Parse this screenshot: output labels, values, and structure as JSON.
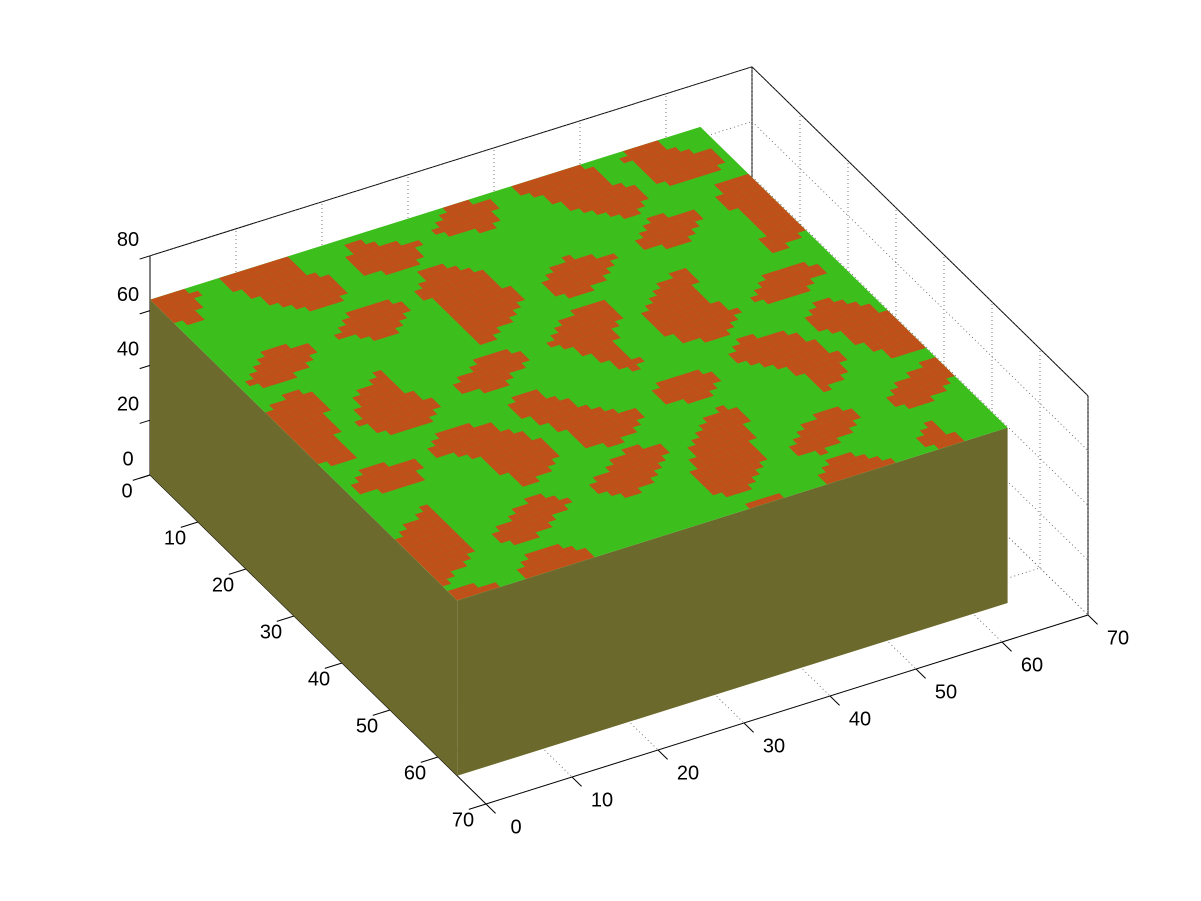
{
  "chart_data": {
    "type": "scatter3d",
    "xlim": [
      0,
      70
    ],
    "ylim": [
      0,
      70
    ],
    "zlim": [
      0,
      80
    ],
    "xticks": [
      0,
      10,
      20,
      30,
      40,
      50,
      60,
      70
    ],
    "yticks": [
      0,
      10,
      20,
      30,
      40,
      50,
      60,
      70
    ],
    "zticks": [
      0,
      20,
      40,
      60,
      80
    ],
    "grid": true
  }
}
